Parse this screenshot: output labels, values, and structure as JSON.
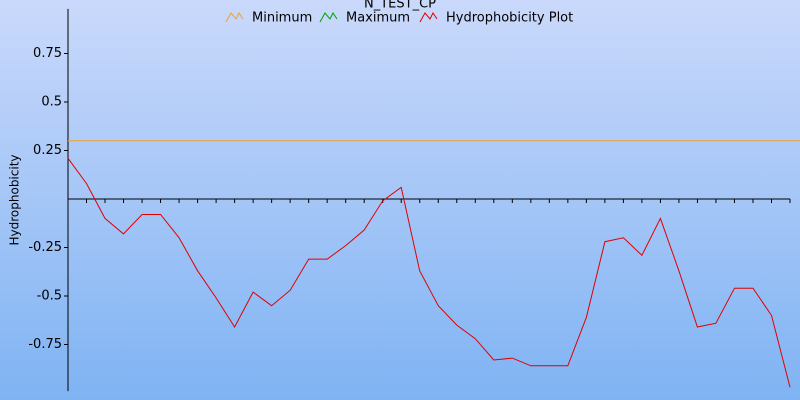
{
  "chart_data": {
    "type": "line",
    "title": "N_TEST_CP",
    "y_label": "Hydrophobicity",
    "categories": [
      null,
      null,
      null,
      null,
      null,
      null,
      null,
      null,
      null,
      null,
      null,
      null,
      null,
      null,
      null,
      null,
      null,
      null,
      null,
      null,
      null,
      null,
      null,
      null,
      null,
      null,
      null,
      null,
      null,
      null,
      null,
      null,
      null,
      null,
      null,
      null,
      null,
      null,
      null,
      null
    ],
    "series": [
      {
        "name": "Minimum",
        "color": "#f0a030",
        "value": 0.3
      },
      {
        "name": "Maximum",
        "color": "#00a000"
      },
      {
        "name": "Hydrophobicity Plot",
        "color": "#e00000",
        "values": [
          0.21,
          0.08,
          -0.1,
          -0.18,
          -0.08,
          -0.08,
          -0.2,
          -0.37,
          -0.51,
          -0.66,
          -0.48,
          -0.55,
          -0.47,
          -0.31,
          -0.31,
          -0.24,
          -0.16,
          -0.01,
          0.06,
          -0.37,
          -0.55,
          -0.65,
          -0.72,
          -0.83,
          -0.82,
          -0.86,
          -0.86,
          -0.86,
          -0.61,
          -0.22,
          -0.2,
          -0.29,
          -0.1,
          -0.37,
          -0.66,
          -0.64,
          -0.46,
          -0.46,
          -0.6,
          -0.97
        ]
      }
    ],
    "ylim": [
      -0.98,
      0.98
    ],
    "yticks": [
      0.75,
      0.5,
      0.25,
      -0.25,
      -0.5,
      -0.75
    ]
  }
}
